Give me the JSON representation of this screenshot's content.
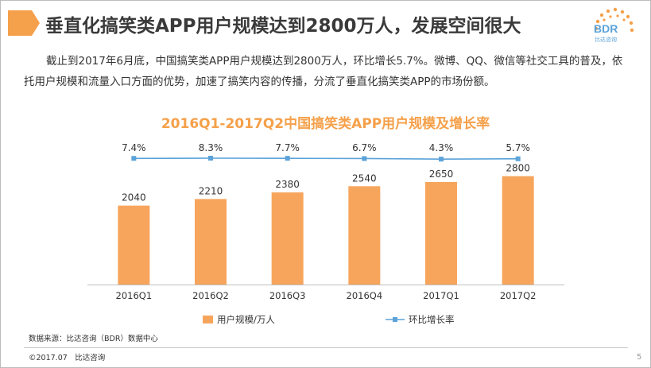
{
  "header": {
    "title": "垂直化搞笑类APP用户规模达到2800万人，发展空间很大",
    "logo_text": "BDR",
    "logo_sub": "比达咨询"
  },
  "body_text": "截止到2017年6月底，中国搞笑类APP用户规模达到2800万人，环比增长5.7%。微博、QQ、微信等社交工具的普及，依托用户规模和流量入口方面的优势，加速了搞笑内容的传播，分流了垂直化搞笑类APP的市场份额。",
  "colors": {
    "accent": "#f5a04a",
    "bar": "#f7a55c",
    "line": "#5ba3d9"
  },
  "chart_data": {
    "type": "bar",
    "title": "2016Q1-2017Q2中国搞笑类APP用户规模及增长率",
    "categories": [
      "2016Q1",
      "2016Q2",
      "2016Q3",
      "2016Q4",
      "2017Q1",
      "2017Q2"
    ],
    "series": [
      {
        "name": "用户规模/万人",
        "type": "bar",
        "values": [
          2040,
          2210,
          2380,
          2540,
          2650,
          2800
        ]
      },
      {
        "name": "环比增长率",
        "type": "line",
        "values": [
          7.4,
          8.3,
          7.7,
          6.7,
          4.3,
          5.7
        ],
        "labels": [
          "7.4%",
          "8.3%",
          "7.7%",
          "6.7%",
          "4.3%",
          "5.7%"
        ]
      }
    ],
    "legend_position": "bottom",
    "grid": false
  },
  "footer": {
    "source": "数据来源：比达咨询（BDR）数据中心",
    "copyright": "©2017.07　比达咨询",
    "page_number": "5"
  }
}
